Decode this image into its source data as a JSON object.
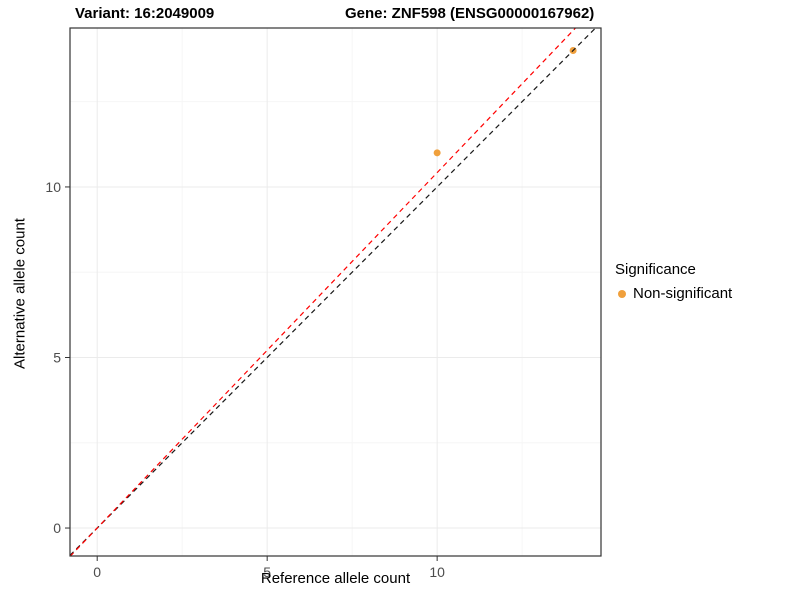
{
  "titles": {
    "left": "Variant: 16:2049009",
    "right": "Gene: ZNF598 (ENSG00000167962)"
  },
  "chart_data": {
    "type": "scatter",
    "xlabel": "Reference allele count",
    "ylabel": "Alternative allele count",
    "xlim": [
      -0.8,
      14.82
    ],
    "ylim": [
      -0.82,
      14.66
    ],
    "x_ticks": [
      0,
      5,
      10
    ],
    "y_ticks": [
      0,
      5,
      10
    ],
    "x_minor_ticks": [
      2.5,
      7.5,
      12.5
    ],
    "y_minor_ticks": [
      2.5,
      7.5,
      12.5
    ],
    "grid": true,
    "legend_position": "right",
    "point_radius": 3.5,
    "points": [
      {
        "x": 10,
        "y": 11,
        "series": "Non-significant",
        "color": "#F0A03C"
      },
      {
        "x": 14,
        "y": 14,
        "series": "Non-significant",
        "color": "#F0A03C"
      }
    ],
    "lines": [
      {
        "name": "identity-line",
        "slope": 1.0,
        "intercept": 0,
        "color": "#1A1A1A",
        "style": "dashed"
      },
      {
        "name": "fitted-ratio-line",
        "slope": 1.042,
        "intercept": 0,
        "color": "#FF0000",
        "style": "dashed"
      }
    ],
    "legend": {
      "title": "Significance",
      "items": [
        {
          "label": "Non-significant",
          "color": "#F0A03C"
        }
      ]
    },
    "colors": {
      "grid_major": "#EBEBEB",
      "grid_minor": "#F6F6F6",
      "panel_border": "#333333",
      "tick": "#333333",
      "tick_label": "#4D4D4D",
      "background": "#FFFFFF"
    }
  }
}
